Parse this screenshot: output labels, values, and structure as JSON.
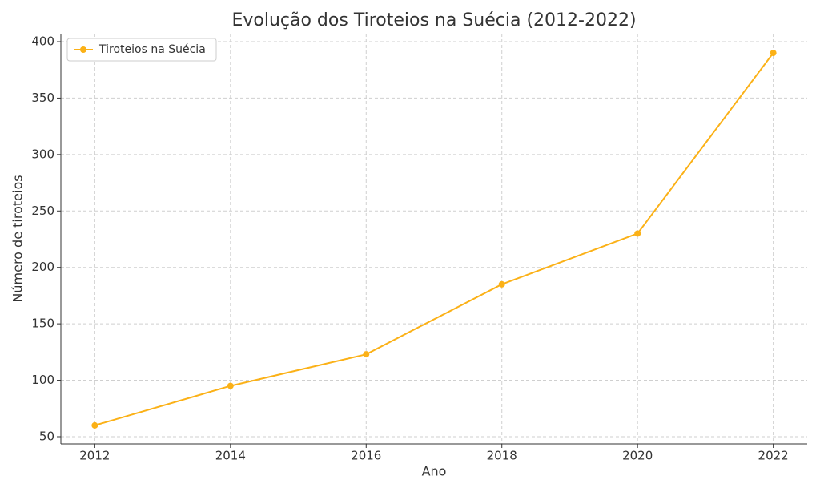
{
  "chart_data": {
    "type": "line",
    "title": "Evolução dos Tiroteios na Suécia (2012-2022)",
    "x_label": "Ano",
    "y_label": "Número de tiroteios",
    "x": [
      2012,
      2014,
      2016,
      2018,
      2020,
      2022
    ],
    "series": [
      {
        "name": "Tiroteios na Suécia",
        "color": "#fbb117",
        "values": [
          60,
          95,
          123,
          185,
          230,
          390
        ]
      }
    ],
    "xlim": [
      2011.5,
      2022.5
    ],
    "xticks": [
      2012,
      2014,
      2016,
      2018,
      2020,
      2022
    ],
    "ylim": [
      43.6,
      407.1
    ],
    "yticks": [
      50,
      100,
      150,
      200,
      250,
      300,
      350,
      400
    ],
    "grid": true,
    "legend": "upper-left",
    "markers": true
  }
}
